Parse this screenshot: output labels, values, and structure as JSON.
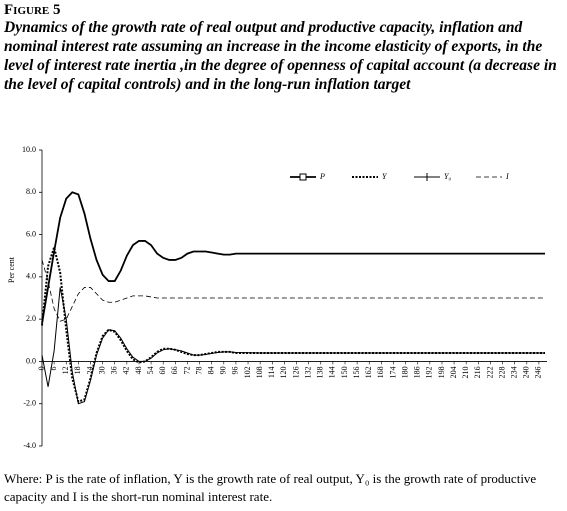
{
  "chart_data": {
    "type": "line",
    "figure_label": "Figure 5",
    "title": "Dynamics of the growth rate of real output and productive capacity, inflation and nominal interest rate assuming an increase in the income elasticity of exports, in the level of interest rate inertia ,in the degree of openness of capital account (a decrease in the level of capital controls) and in the long-run inflation target",
    "y_label": "Per cent",
    "note": "Where: P is the rate of inflation, Y is the growth rate of real output, Y₀ is the growth rate of productive capacity and I is the short-run nominal interest rate.",
    "x": [
      0,
      3,
      6,
      9,
      12,
      15,
      18,
      21,
      24,
      27,
      30,
      33,
      36,
      39,
      42,
      45,
      48,
      51,
      54,
      57,
      60,
      63,
      66,
      69,
      72,
      75,
      78,
      81,
      84,
      87,
      90,
      93,
      96,
      108,
      120,
      132,
      144,
      156,
      168,
      180,
      192,
      204,
      216,
      228,
      240,
      249
    ],
    "series": [
      {
        "name": "P",
        "color": "#000000",
        "style": "solid-square",
        "values": [
          1.8,
          3.5,
          5.2,
          6.8,
          7.7,
          8.0,
          7.9,
          7.0,
          5.8,
          4.8,
          4.1,
          3.8,
          3.8,
          4.3,
          5.0,
          5.5,
          5.7,
          5.7,
          5.5,
          5.1,
          4.9,
          4.8,
          4.8,
          4.9,
          5.1,
          5.2,
          5.2,
          5.2,
          5.15,
          5.1,
          5.05,
          5.05,
          5.1,
          5.1,
          5.1,
          5.1,
          5.1,
          5.1,
          5.1,
          5.1,
          5.1,
          5.1,
          5.1,
          5.1,
          5.1,
          5.1
        ]
      },
      {
        "name": "Y",
        "color": "#000000",
        "style": "dotted",
        "values": [
          1.7,
          4.5,
          5.4,
          4.2,
          1.5,
          -0.8,
          -1.9,
          -1.8,
          -0.8,
          0.4,
          1.2,
          1.5,
          1.4,
          1.0,
          0.5,
          0.1,
          -0.05,
          0.0,
          0.2,
          0.45,
          0.6,
          0.6,
          0.55,
          0.45,
          0.35,
          0.3,
          0.3,
          0.35,
          0.4,
          0.45,
          0.45,
          0.45,
          0.4,
          0.4,
          0.4,
          0.4,
          0.4,
          0.4,
          0.4,
          0.4,
          0.4,
          0.4,
          0.4,
          0.4,
          0.4,
          0.4
        ]
      },
      {
        "name": "Y₀",
        "color": "#000000",
        "style": "solid-plus",
        "values": [
          0.3,
          -1.2,
          0.5,
          3.5,
          2.0,
          -0.5,
          -2.0,
          -1.9,
          -0.9,
          0.3,
          1.1,
          1.5,
          1.45,
          1.1,
          0.6,
          0.2,
          0.0,
          0.0,
          0.15,
          0.4,
          0.55,
          0.6,
          0.55,
          0.5,
          0.4,
          0.3,
          0.3,
          0.33,
          0.38,
          0.42,
          0.45,
          0.45,
          0.42,
          0.4,
          0.4,
          0.4,
          0.4,
          0.4,
          0.4,
          0.4,
          0.4,
          0.4,
          0.4,
          0.4,
          0.4,
          0.4
        ]
      },
      {
        "name": "I",
        "color": "#000000",
        "style": "dashed",
        "values": [
          4.8,
          3.8,
          2.5,
          1.9,
          2.0,
          2.6,
          3.2,
          3.5,
          3.5,
          3.2,
          2.9,
          2.8,
          2.8,
          2.9,
          3.0,
          3.1,
          3.1,
          3.1,
          3.05,
          3.0,
          3.0,
          3.0,
          3.0,
          3.0,
          3.0,
          3.0,
          3.0,
          3.0,
          3.0,
          3.0,
          3.0,
          3.0,
          3.0,
          3.0,
          3.0,
          3.0,
          3.0,
          3.0,
          3.0,
          3.0,
          3.0,
          3.0,
          3.0,
          3.0,
          3.0,
          3.0
        ]
      }
    ],
    "xlim": [
      0,
      250
    ],
    "xticks": [
      0,
      6,
      12,
      18,
      24,
      30,
      36,
      42,
      48,
      54,
      60,
      66,
      72,
      78,
      84,
      90,
      96,
      102,
      108,
      114,
      120,
      126,
      132,
      138,
      144,
      150,
      156,
      162,
      168,
      174,
      180,
      186,
      192,
      198,
      204,
      210,
      216,
      222,
      228,
      234,
      240,
      246
    ],
    "ylim": [
      -4,
      10
    ],
    "yticks": [
      {
        "value": -4,
        "label": "-4.0"
      },
      {
        "value": -2,
        "label": "-2.0"
      },
      {
        "value": 0,
        "label": "0.0"
      },
      {
        "value": 2,
        "label": "2.0"
      },
      {
        "value": 4,
        "label": "4.0"
      },
      {
        "value": 6,
        "label": "6.0"
      },
      {
        "value": 8,
        "label": "8.0"
      },
      {
        "value": 10,
        "label": "10.0"
      }
    ],
    "legend": "top-right"
  }
}
